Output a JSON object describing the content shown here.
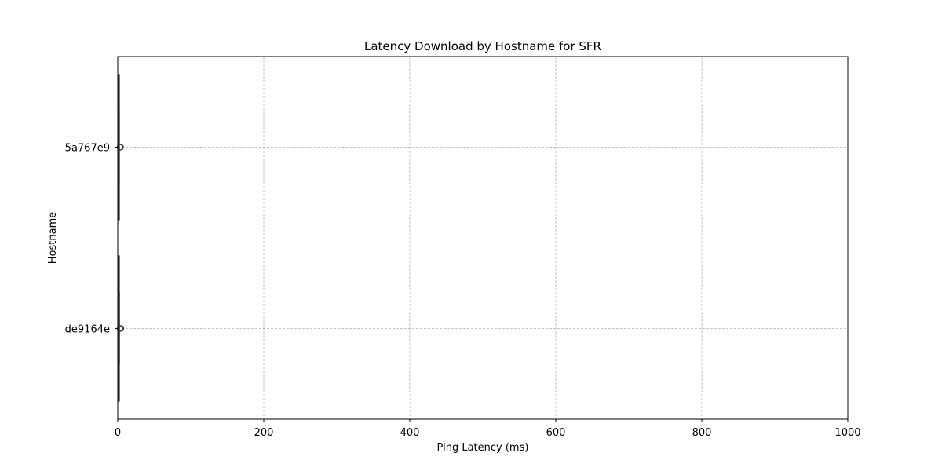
{
  "chart_data": {
    "type": "box",
    "orientation": "horizontal",
    "title": "Latency Download by Hostname for SFR",
    "xlabel": "Ping Latency (ms)",
    "ylabel": "Hostname",
    "xlim": [
      0,
      1000
    ],
    "xticks": [
      0,
      200,
      400,
      600,
      800,
      1000
    ],
    "grid": true,
    "categories": [
      "5a767e9",
      "de9164e"
    ],
    "series": [
      {
        "category": "5a767e9",
        "whisker_low": 0.5,
        "q1": 1.0,
        "median": 1.2,
        "q3": 1.5,
        "whisker_high": 2.0,
        "outliers": [
          3.0,
          3.5,
          4.0
        ]
      },
      {
        "category": "de9164e",
        "whisker_low": 0.5,
        "q1": 1.0,
        "median": 1.3,
        "q3": 1.6,
        "whisker_high": 2.2,
        "outliers": [
          3.0,
          3.8,
          4.5
        ]
      }
    ],
    "colors": {
      "grid": "#b0b0b0",
      "box_edge": "#3f3f3f",
      "outlier": "#3f3f3f",
      "axis": "#000000"
    }
  }
}
